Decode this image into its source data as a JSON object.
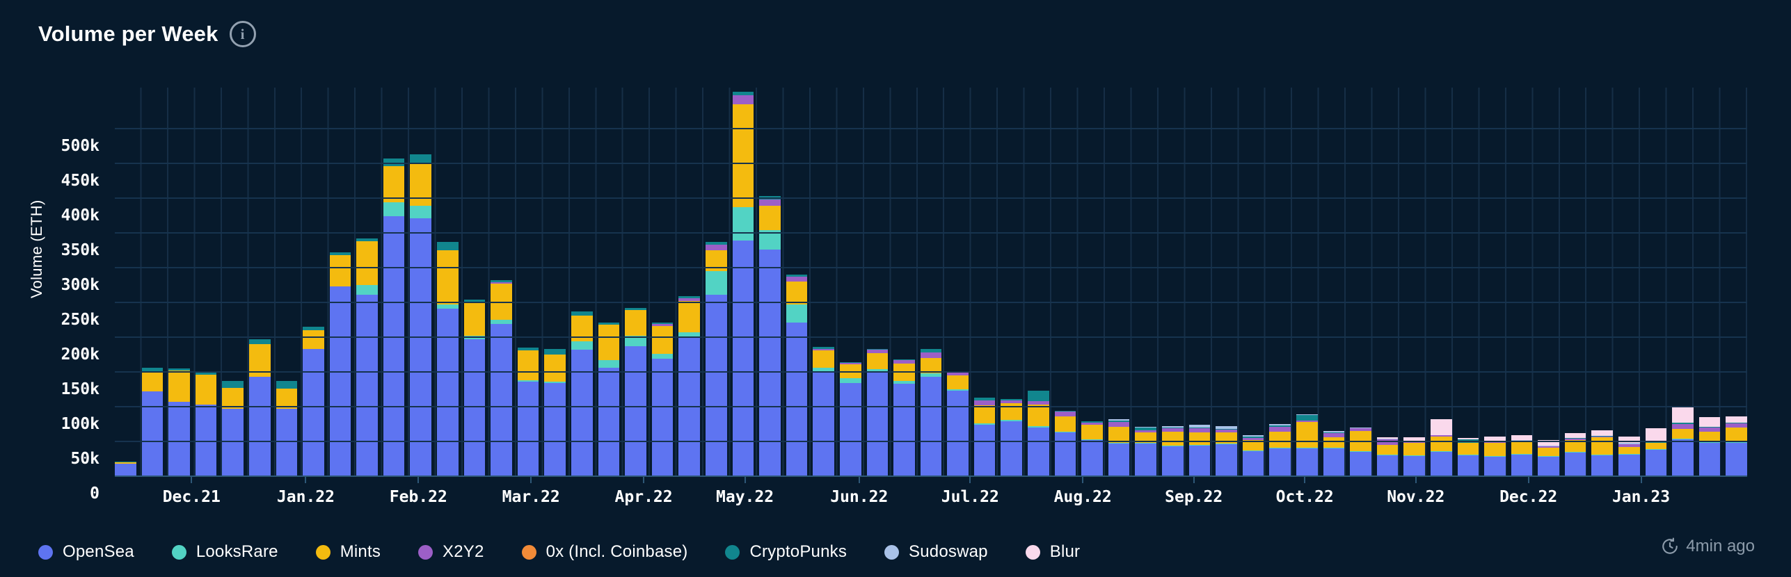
{
  "header": {
    "title": "Volume per Week"
  },
  "updated": {
    "text": "4min ago"
  },
  "y_axis": {
    "title": "Volume (ETH)",
    "ticks": [
      "0",
      "50k",
      "100k",
      "150k",
      "200k",
      "250k",
      "300k",
      "350k",
      "400k",
      "450k",
      "500k"
    ],
    "tick_step_eth": 50000
  },
  "x_axis": {
    "labels": [
      {
        "text": "Dec.21",
        "pos_pct": 4.7
      },
      {
        "text": "Jan.22",
        "pos_pct": 11.7
      },
      {
        "text": "Feb.22",
        "pos_pct": 18.6
      },
      {
        "text": "Mar.22",
        "pos_pct": 25.5
      },
      {
        "text": "Apr.22",
        "pos_pct": 32.4
      },
      {
        "text": "May.22",
        "pos_pct": 38.6
      },
      {
        "text": "Jun.22",
        "pos_pct": 45.6
      },
      {
        "text": "Jul.22",
        "pos_pct": 52.4
      },
      {
        "text": "Aug.22",
        "pos_pct": 59.3
      },
      {
        "text": "Sep.22",
        "pos_pct": 66.1
      },
      {
        "text": "Oct.22",
        "pos_pct": 72.9
      },
      {
        "text": "Nov.22",
        "pos_pct": 79.7
      },
      {
        "text": "Dec.22",
        "pos_pct": 86.6
      },
      {
        "text": "Jan.23",
        "pos_pct": 93.5
      }
    ]
  },
  "chart_data": {
    "type": "bar",
    "subtype": "stacked-weekly",
    "title": "Volume per Week",
    "ylabel": "Volume (ETH)",
    "unit": "thousand ETH",
    "ylim": [
      0,
      560
    ],
    "grid": "horizontal",
    "legend_position": "bottom",
    "weeks": 61,
    "x_range": "late Nov 2021 to late Jan 2023, one bar per week",
    "series": [
      {
        "name": "OpenSea",
        "color": "#5E74F1",
        "values": [
          19,
          123,
          108,
          104,
          98,
          144,
          98,
          184,
          274,
          262,
          375,
          372,
          242,
          198,
          220,
          137,
          135,
          183,
          157,
          188,
          170,
          200,
          262,
          340,
          327,
          222,
          152,
          135,
          150,
          134,
          144,
          124,
          75,
          80,
          71,
          64,
          53,
          48,
          48,
          44,
          45,
          47,
          37,
          41,
          41,
          41,
          36,
          31,
          30,
          36,
          31,
          29,
          32,
          29,
          35,
          31,
          32,
          39,
          54,
          49,
          49
        ]
      },
      {
        "name": "LooksRare",
        "color": "#52D3C4",
        "values": [
          0,
          0,
          0,
          0,
          0,
          0,
          0,
          0,
          0,
          14,
          20,
          18,
          6,
          5,
          6,
          2,
          2,
          12,
          11,
          15,
          7,
          8,
          34,
          48,
          28,
          26,
          5,
          7,
          5,
          4,
          5,
          2,
          2,
          2,
          2,
          1,
          1,
          1,
          1,
          1,
          1,
          1,
          1,
          1,
          1,
          1,
          1,
          1,
          1,
          1,
          1,
          1,
          1,
          1,
          1,
          1,
          1,
          1,
          1,
          1,
          1
        ]
      },
      {
        "name": "Mints",
        "color": "#F4BB0F",
        "values": [
          2,
          28,
          45,
          43,
          30,
          47,
          29,
          27,
          45,
          63,
          52,
          62,
          78,
          47,
          52,
          43,
          39,
          37,
          51,
          37,
          40,
          45,
          30,
          148,
          35,
          33,
          25,
          20,
          23,
          25,
          22,
          20,
          26,
          24,
          31,
          22,
          21,
          23,
          15,
          20,
          18,
          16,
          15,
          23,
          37,
          15,
          29,
          14,
          18,
          21,
          17,
          19,
          17,
          12,
          17,
          25,
          10,
          9,
          14,
          15,
          21
        ]
      },
      {
        "name": "X2Y2",
        "color": "#9C5FC7",
        "values": [
          0,
          0,
          0,
          0,
          0,
          0,
          0,
          0,
          0,
          0,
          0,
          0,
          0,
          0,
          2,
          0,
          0,
          0,
          0,
          0,
          3,
          4,
          8,
          13,
          9,
          7,
          2,
          2,
          5,
          5,
          8,
          4,
          7,
          4,
          5,
          7,
          3,
          7,
          3,
          5,
          6,
          4,
          3,
          7,
          2,
          6,
          4,
          8,
          3,
          2,
          0,
          2,
          2,
          2,
          2,
          1,
          4,
          0,
          7,
          6,
          6
        ]
      },
      {
        "name": "0x (Incl. Coinbase)",
        "color": "#F28B38",
        "values": [
          0,
          0,
          0,
          0,
          0,
          0,
          0,
          0,
          0,
          0,
          0,
          0,
          0,
          0,
          0,
          0,
          0,
          0,
          0,
          0,
          0,
          0,
          0,
          0,
          0,
          0,
          0,
          0,
          0,
          0,
          0,
          0,
          0,
          0,
          0,
          0,
          0,
          0,
          0,
          0,
          0,
          0,
          0,
          0,
          0,
          0,
          0,
          0,
          0,
          0,
          0,
          0,
          0,
          0,
          0,
          0,
          0,
          0,
          0,
          0,
          0
        ]
      },
      {
        "name": "CryptoPunks",
        "color": "#11868E",
        "values": [
          1,
          6,
          3,
          5,
          10,
          7,
          11,
          5,
          4,
          4,
          11,
          12,
          12,
          5,
          3,
          4,
          8,
          6,
          3,
          3,
          2,
          3,
          4,
          5,
          5,
          3,
          3,
          1,
          1,
          1,
          5,
          1,
          4,
          2,
          15,
          1,
          2,
          2,
          4,
          1,
          1,
          1,
          2,
          2,
          8,
          1,
          0,
          0,
          0,
          0,
          5,
          0,
          0,
          0,
          1,
          1,
          0,
          1,
          2,
          1,
          1
        ]
      },
      {
        "name": "Sudoswap",
        "color": "#A9C2E8",
        "values": [
          0,
          0,
          0,
          0,
          0,
          0,
          0,
          0,
          0,
          0,
          0,
          0,
          0,
          0,
          0,
          0,
          0,
          0,
          0,
          0,
          0,
          0,
          0,
          0,
          0,
          0,
          0,
          0,
          0,
          0,
          0,
          0,
          0,
          0,
          0,
          0,
          0,
          2,
          1,
          2,
          4,
          4,
          2,
          2,
          1,
          2,
          1,
          1,
          0,
          0,
          0,
          0,
          1,
          1,
          0,
          0,
          2,
          0,
          0,
          0,
          0
        ]
      },
      {
        "name": "Blur",
        "color": "#FAD9EC",
        "values": [
          0,
          0,
          0,
          0,
          0,
          0,
          0,
          0,
          0,
          0,
          0,
          0,
          0,
          0,
          0,
          0,
          0,
          0,
          0,
          0,
          0,
          0,
          0,
          0,
          0,
          0,
          0,
          0,
          0,
          0,
          0,
          0,
          0,
          0,
          0,
          0,
          0,
          0,
          0,
          0,
          0,
          0,
          0,
          0,
          0,
          0,
          0,
          2,
          5,
          23,
          2,
          7,
          7,
          8,
          7,
          8,
          9,
          20,
          23,
          14,
          9
        ]
      }
    ]
  },
  "colors": {
    "background": "#071A2C",
    "gridline": "#16334E",
    "axis": "#2E5878",
    "text": "#FFFFFF",
    "muted": "#8C9BAA"
  }
}
